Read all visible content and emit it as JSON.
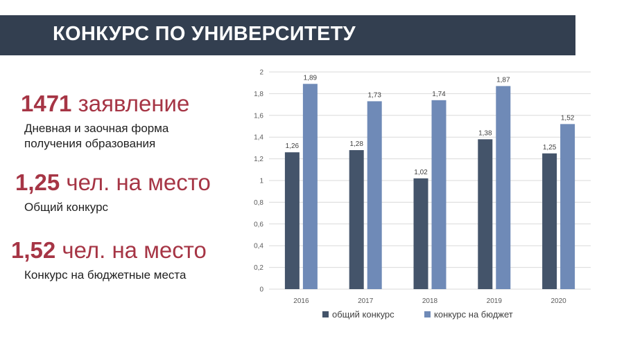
{
  "header": {
    "title": "КОНКУРС ПО УНИВЕРСИТЕТУ"
  },
  "stats": [
    {
      "value": "1471",
      "unit": "заявление",
      "desc_line1": "Дневная и заочная форма",
      "desc_line2": "получения образования"
    },
    {
      "value": "1,25",
      "unit": "чел. на место",
      "desc_line1": "Общий конкурс"
    },
    {
      "value": "1,52",
      "unit": "чел. на место",
      "desc_line1": "Конкурс на бюджетные места"
    }
  ],
  "colors": {
    "header_bg": "#333f50",
    "accent": "#a63545",
    "series1": "#44546a",
    "series2": "#6f8ab7"
  },
  "chart_data": {
    "type": "bar",
    "categories": [
      "2016",
      "2017",
      "2018",
      "2019",
      "2020"
    ],
    "series": [
      {
        "name": "общий конкурс",
        "values": [
          1.26,
          1.28,
          1.02,
          1.38,
          1.25
        ],
        "labels": [
          "1,26",
          "1,28",
          "1,02",
          "1,38",
          "1,25"
        ]
      },
      {
        "name": "конкурс на бюджет",
        "values": [
          1.89,
          1.73,
          1.74,
          1.87,
          1.52
        ],
        "labels": [
          "1,89",
          "1,73",
          "1,74",
          "1,87",
          "1,52"
        ]
      }
    ],
    "ylim": [
      0,
      2
    ],
    "yticks": [
      0,
      0.2,
      0.4,
      0.6,
      0.8,
      1,
      1.2,
      1.4,
      1.6,
      1.8,
      2
    ],
    "ytick_labels": [
      "0",
      "0,2",
      "0,4",
      "0,6",
      "0,8",
      "1",
      "1,2",
      "1,4",
      "1,6",
      "1,8",
      "2"
    ],
    "grid": true,
    "legend": "bottom"
  }
}
